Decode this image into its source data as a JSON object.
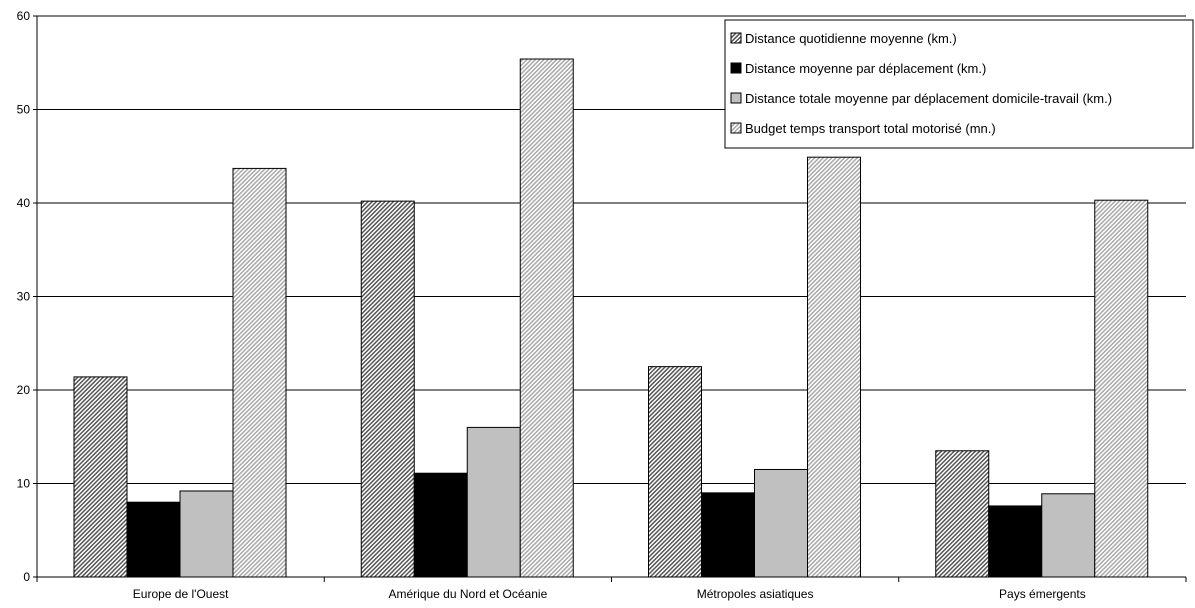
{
  "chart_data": {
    "type": "bar",
    "categories": [
      "Europe de l'Ouest",
      "Amérique du Nord et Océanie",
      "Métropoles asiatiques",
      "Pays émergents"
    ],
    "series": [
      {
        "name": "Distance quotidienne moyenne (km.)",
        "values": [
          21.4,
          40.2,
          22.5,
          13.5
        ],
        "fill": "hatch-dense",
        "color": "#444444"
      },
      {
        "name": "Distance moyenne par déplacement (km.)",
        "values": [
          8.0,
          11.1,
          9.0,
          7.6
        ],
        "fill": "solid",
        "color": "#000000"
      },
      {
        "name": "Distance totale moyenne par déplacement domicile-travail (km.)",
        "values": [
          9.2,
          16.0,
          11.5,
          8.9
        ],
        "fill": "solid",
        "color": "#c0c0c0"
      },
      {
        "name": "Budget temps transport total motorisé (mn.)",
        "values": [
          43.7,
          55.4,
          44.9,
          40.3
        ],
        "fill": "hatch-light",
        "color": "#9a9a9a"
      }
    ],
    "yticks": [
      "0",
      "10",
      "20",
      "30",
      "40",
      "50",
      "60"
    ],
    "ylim": [
      0,
      60
    ],
    "title": "",
    "xlabel": "",
    "ylabel": "",
    "grid": true,
    "legend_position": "top-right"
  }
}
